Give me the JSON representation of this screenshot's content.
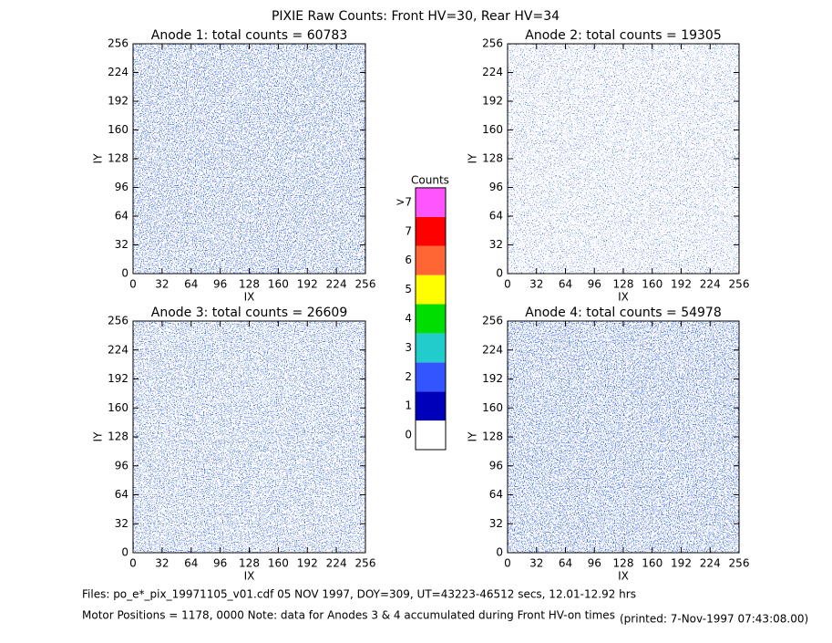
{
  "figure": {
    "title": "PIXIE Raw Counts:  Front HV=30, Rear HV=34"
  },
  "chart_data": [
    {
      "type": "heatmap",
      "title": "Anode 1: total counts = 60783",
      "xlabel": "IX",
      "ylabel": "IY",
      "xlim": [
        0,
        256
      ],
      "ylim": [
        0,
        256
      ],
      "xticks": [
        0,
        32,
        64,
        96,
        128,
        160,
        192,
        224,
        256
      ],
      "yticks": [
        0,
        32,
        64,
        96,
        128,
        160,
        192,
        224,
        256
      ]
    },
    {
      "type": "heatmap",
      "title": "Anode 2: total counts = 19305",
      "xlabel": "IX",
      "ylabel": "IY",
      "xlim": [
        0,
        256
      ],
      "ylim": [
        0,
        256
      ],
      "xticks": [
        0,
        32,
        64,
        96,
        128,
        160,
        192,
        224,
        256
      ],
      "yticks": [
        0,
        32,
        64,
        96,
        128,
        160,
        192,
        224,
        256
      ]
    },
    {
      "type": "heatmap",
      "title": "Anode 3: total counts = 26609",
      "xlabel": "IX",
      "ylabel": "IY",
      "xlim": [
        0,
        256
      ],
      "ylim": [
        0,
        256
      ],
      "xticks": [
        0,
        32,
        64,
        96,
        128,
        160,
        192,
        224,
        256
      ],
      "yticks": [
        0,
        32,
        64,
        96,
        128,
        160,
        192,
        224,
        256
      ]
    },
    {
      "type": "heatmap",
      "title": "Anode 4: total counts = 54978",
      "xlabel": "IX",
      "ylabel": "IY",
      "xlim": [
        0,
        256
      ],
      "ylim": [
        0,
        256
      ],
      "xticks": [
        0,
        32,
        64,
        96,
        128,
        160,
        192,
        224,
        256
      ],
      "yticks": [
        0,
        32,
        64,
        96,
        128,
        160,
        192,
        224,
        256
      ]
    }
  ],
  "colorbar": {
    "title": "Counts",
    "labels": [
      "0",
      "1",
      "2",
      "3",
      "4",
      "5",
      "6",
      "7",
      ">7"
    ],
    "colors": [
      "#ffffff",
      "#0000bb",
      "#3355ff",
      "#22cccc",
      "#00dd00",
      "#ffff00",
      "#ff6633",
      "#ff0000",
      "#ff55ff"
    ]
  },
  "footer": {
    "files": "Files: po_e*_pix_19971105_v01.cdf    05 NOV 1997, DOY=309, UT=43223-46512 secs, 12.01-12.92 hrs",
    "motor": "Motor Positions = 1178, 0000   Note: data for Anodes 3 & 4 accumulated during Front HV-on times",
    "printed": "(printed:  7-Nov-1997 07:43:08.00)"
  }
}
